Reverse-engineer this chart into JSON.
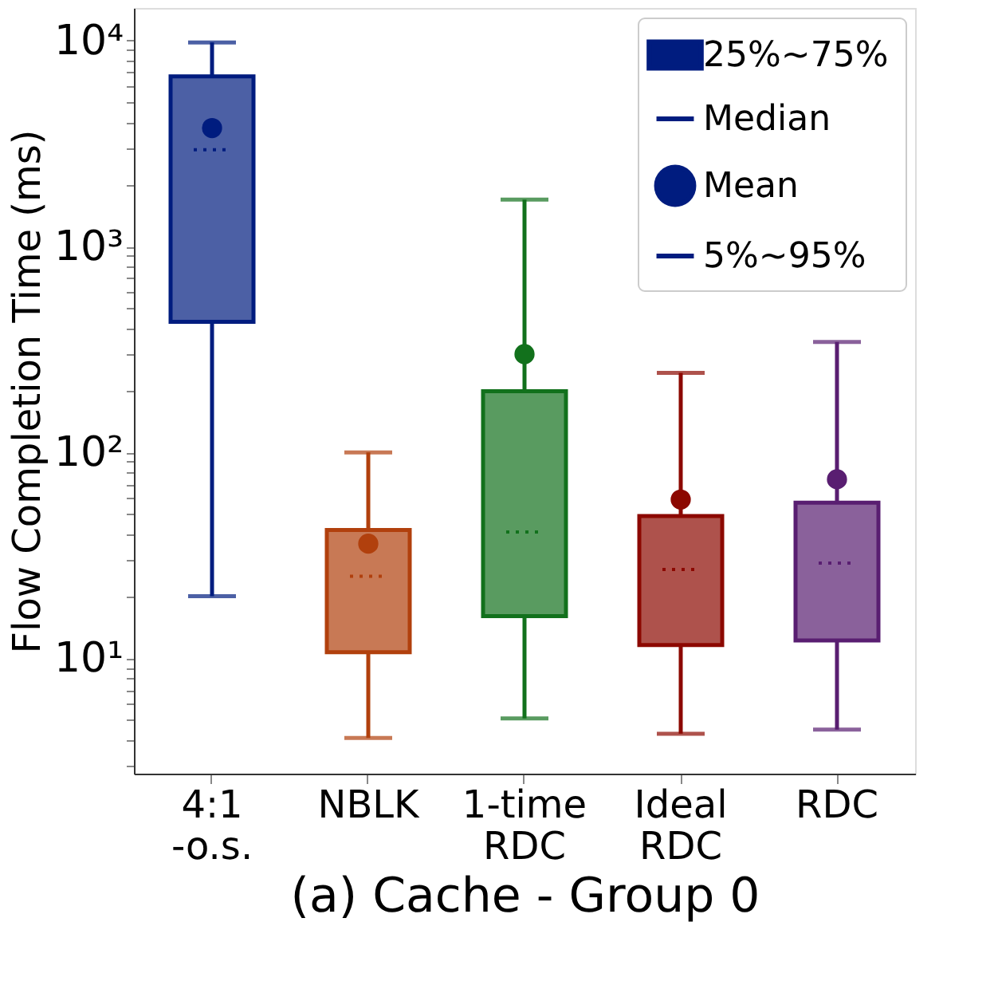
{
  "chart_data": {
    "type": "box",
    "xlabel": "(a) Cache - Group 0",
    "ylabel": "Flow Completion Time (ms)",
    "categories": [
      "4:1\n-o.s.",
      "NBLK",
      "1-time\nRDC",
      "Ideal\nRDC",
      "RDC"
    ],
    "colors": [
      "#001c7f",
      "#b1400d",
      "#12711c",
      "#8c0800",
      "#591e71"
    ],
    "boxes": [
      {
        "low": 20,
        "q1": 430,
        "median": 2950,
        "q3": 6700,
        "high": 9800,
        "mean": 3760
      },
      {
        "low": 4.1,
        "q1": 10.7,
        "median": 25,
        "q3": 42,
        "high": 100,
        "mean": 36
      },
      {
        "low": 5.1,
        "q1": 16,
        "median": 41,
        "q3": 198,
        "high": 1690,
        "mean": 300
      },
      {
        "low": 4.3,
        "q1": 11.6,
        "median": 27,
        "q3": 49,
        "high": 243,
        "mean": 59
      },
      {
        "low": 4.5,
        "q1": 12.2,
        "median": 29,
        "q3": 57,
        "high": 344,
        "mean": 74
      }
    ],
    "log": true,
    "ylim": [
      2.75,
      14400
    ],
    "yticks": [
      {
        "value": 3,
        "label": null
      },
      {
        "value": 4,
        "label": null
      },
      {
        "value": 5,
        "label": null
      },
      {
        "value": 6,
        "label": null
      },
      {
        "value": 7,
        "label": null
      },
      {
        "value": 8,
        "label": null
      },
      {
        "value": 9,
        "label": null
      },
      {
        "value": 10,
        "label": "10¹"
      },
      {
        "value": 20,
        "label": null
      },
      {
        "value": 30,
        "label": null
      },
      {
        "value": 40,
        "label": null
      },
      {
        "value": 50,
        "label": null
      },
      {
        "value": 60,
        "label": null
      },
      {
        "value": 70,
        "label": null
      },
      {
        "value": 80,
        "label": null
      },
      {
        "value": 90,
        "label": null
      },
      {
        "value": 100,
        "label": "10²"
      },
      {
        "value": 200,
        "label": null
      },
      {
        "value": 300,
        "label": null
      },
      {
        "value": 400,
        "label": null
      },
      {
        "value": 500,
        "label": null
      },
      {
        "value": 600,
        "label": null
      },
      {
        "value": 700,
        "label": null
      },
      {
        "value": 800,
        "label": null
      },
      {
        "value": 900,
        "label": null
      },
      {
        "value": 1000,
        "label": "10³"
      },
      {
        "value": 2000,
        "label": null
      },
      {
        "value": 3000,
        "label": null
      },
      {
        "value": 4000,
        "label": null
      },
      {
        "value": 5000,
        "label": null
      },
      {
        "value": 6000,
        "label": null
      },
      {
        "value": 7000,
        "label": null
      },
      {
        "value": 8000,
        "label": null
      },
      {
        "value": 9000,
        "label": null
      },
      {
        "value": 10000,
        "label": "10⁴"
      }
    ],
    "grid": false,
    "annotations": [
      "25%~75%",
      "Median",
      "Mean",
      "5%~95%"
    ]
  }
}
